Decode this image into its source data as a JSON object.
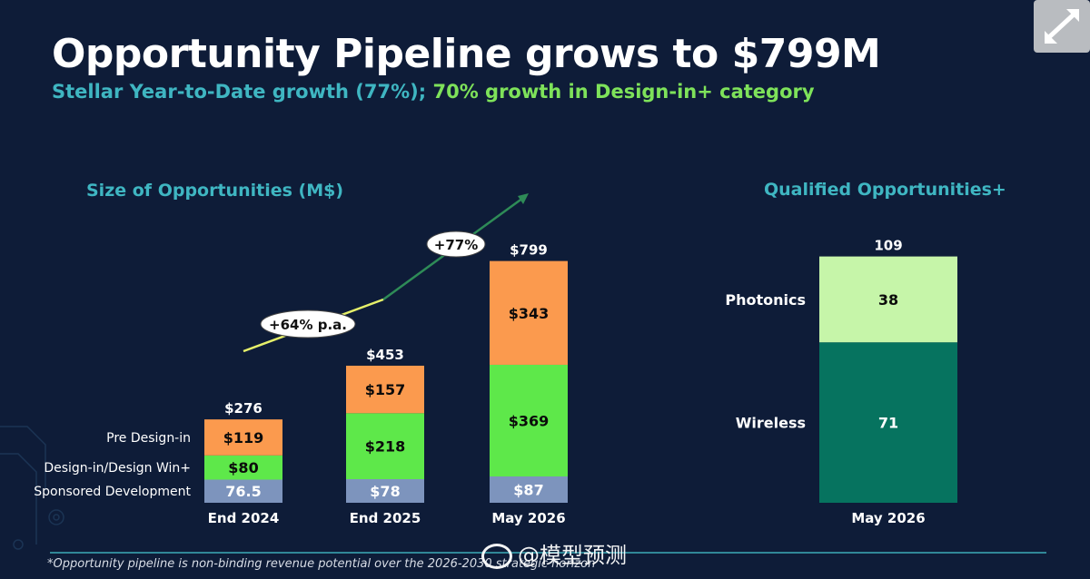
{
  "header": {
    "title": "Opportunity Pipeline grows to $799M",
    "subtitle_part1": "Stellar Year-to-Date growth (77%); ",
    "subtitle_part2": "70% growth in Design-in+ category"
  },
  "footnote": "*Opportunity pipeline is non-binding revenue potential over the 2026-2030 strategic horizon",
  "watermark": "@模型预测",
  "colors": {
    "background": "#0e1c38",
    "sponsored": "#7d94bd",
    "design_in": "#5ee84a",
    "pre_design": "#fb9a4e",
    "photonics": "#c6f5a9",
    "wireless": "#06735f",
    "accent": "#3fb6c2"
  },
  "chart_data": [
    {
      "type": "bar",
      "title": "Size of Opportunities (M$)",
      "categories": [
        "End 2024",
        "End 2025",
        "May 2026"
      ],
      "series": [
        {
          "name": "Sponsored Development",
          "values": [
            76.5,
            78,
            87
          ],
          "labels": [
            "76.5",
            "$78",
            "$87"
          ]
        },
        {
          "name": "Design-in/Design Win+",
          "values": [
            80,
            218,
            369
          ],
          "labels": [
            "$80",
            "$218",
            "$369"
          ]
        },
        {
          "name": "Pre Design-in",
          "values": [
            119,
            157,
            343
          ],
          "labels": [
            "$119",
            "$157",
            "$343"
          ]
        }
      ],
      "totals": [
        276,
        453,
        799
      ],
      "total_labels": [
        "$276",
        "$453",
        "$799"
      ],
      "annotations": [
        "+64% p.a.",
        "+77%"
      ],
      "stacked": true
    },
    {
      "type": "bar",
      "title": "Qualified Opportunities+",
      "categories": [
        "May 2026"
      ],
      "series": [
        {
          "name": "Wireless",
          "values": [
            71
          ],
          "labels": [
            "71"
          ]
        },
        {
          "name": "Photonics",
          "values": [
            38
          ],
          "labels": [
            "38"
          ]
        }
      ],
      "totals": [
        109
      ],
      "total_labels": [
        "109"
      ],
      "stacked": true
    }
  ]
}
